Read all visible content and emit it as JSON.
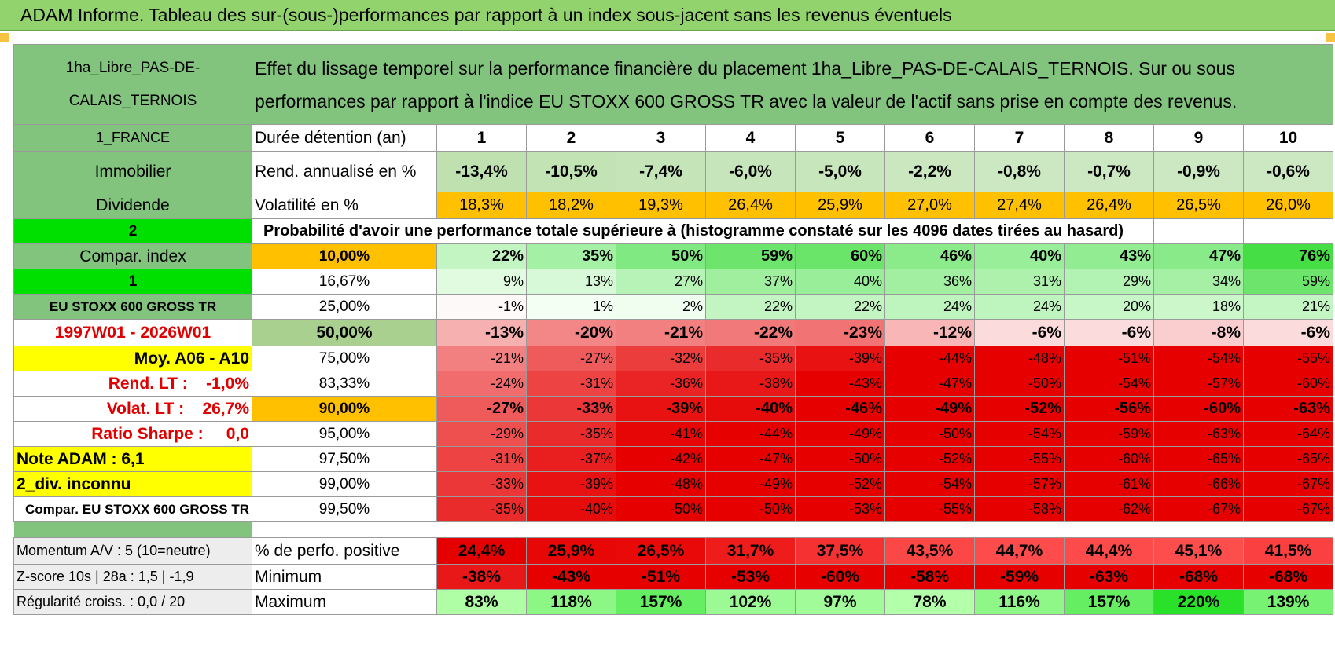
{
  "title": "ADAM Informe. Tableau des sur-(sous-)performances par rapport à un index sous-jacent sans les revenus éventuels",
  "asset_name": "1ha_Libre_PAS-DE-CALAIS_TERNOIS",
  "description": "Effet du lissage temporel sur la performance financière du placement 1ha_Libre_PAS-DE-CALAIS_TERNOIS. Sur ou sous performances par rapport à l'indice EU STOXX 600 GROSS TR avec la valeur de l'actif sans prise en compte des revenus.",
  "side_labels": {
    "country": "1_FRANCE",
    "category": "Immobilier",
    "dividend": "Dividende",
    "num2": "2",
    "compar_index": "Compar. index",
    "num1": "1",
    "index_name": "EU STOXX 600 GROSS TR",
    "period": "1997W01 - 2026W01",
    "moy": "Moy. A06 - A10",
    "rend_lt": "Rend. LT :    -1,0%",
    "volat_lt": "Volat. LT :    26,7%",
    "ratio_sharpe": "Ratio Sharpe :     0,0",
    "note_adam": "Note ADAM : 6,1",
    "div_inconnu": "2_div. inconnu",
    "compar_eu": "Compar. EU STOXX 600 GROSS TR",
    "momentum": "Momentum A/V : 5 (10=neutre)",
    "zscore": "Z-score 10s | 28a : 1,5 | -1,9",
    "regularite": "Régularité croiss. : 0,0 / 20"
  },
  "duration_label": "Durée détention (an)",
  "years": [
    "1",
    "2",
    "3",
    "4",
    "5",
    "6",
    "7",
    "8",
    "9",
    "10"
  ],
  "rend_label": "Rend. annualisé en %",
  "rend": [
    "-13,4%",
    "-10,5%",
    "-7,4%",
    "-6,0%",
    "-5,0%",
    "-2,2%",
    "-0,8%",
    "-0,7%",
    "-0,9%",
    "-0,6%"
  ],
  "vol_label": "Volatilité en %",
  "vol": [
    "18,3%",
    "18,2%",
    "19,3%",
    "26,4%",
    "25,9%",
    "27,0%",
    "27,4%",
    "26,4%",
    "26,5%",
    "26,0%"
  ],
  "prob_label": "Probabilité d'avoir une performance totale supérieure à (histogramme constaté sur les 4096 dates tirées au hasard)",
  "quantile_rows": [
    {
      "q": "10,00%",
      "v": [
        "22%",
        "35%",
        "50%",
        "59%",
        "60%",
        "46%",
        "40%",
        "43%",
        "47%",
        "76%"
      ]
    },
    {
      "q": "16,67%",
      "v": [
        "9%",
        "13%",
        "27%",
        "37%",
        "40%",
        "36%",
        "31%",
        "29%",
        "34%",
        "59%"
      ]
    },
    {
      "q": "25,00%",
      "v": [
        "-1%",
        "1%",
        "2%",
        "22%",
        "22%",
        "24%",
        "24%",
        "20%",
        "18%",
        "21%"
      ]
    },
    {
      "q": "50,00%",
      "v": [
        "-13%",
        "-20%",
        "-21%",
        "-22%",
        "-23%",
        "-12%",
        "-6%",
        "-6%",
        "-8%",
        "-6%"
      ]
    },
    {
      "q": "75,00%",
      "v": [
        "-21%",
        "-27%",
        "-32%",
        "-35%",
        "-39%",
        "-44%",
        "-48%",
        "-51%",
        "-54%",
        "-55%"
      ]
    },
    {
      "q": "83,33%",
      "v": [
        "-24%",
        "-31%",
        "-36%",
        "-38%",
        "-43%",
        "-47%",
        "-50%",
        "-54%",
        "-57%",
        "-60%"
      ]
    },
    {
      "q": "90,00%",
      "v": [
        "-27%",
        "-33%",
        "-39%",
        "-40%",
        "-46%",
        "-49%",
        "-52%",
        "-56%",
        "-60%",
        "-63%"
      ]
    },
    {
      "q": "95,00%",
      "v": [
        "-29%",
        "-35%",
        "-41%",
        "-44%",
        "-49%",
        "-50%",
        "-54%",
        "-59%",
        "-63%",
        "-64%"
      ]
    },
    {
      "q": "97,50%",
      "v": [
        "-31%",
        "-37%",
        "-42%",
        "-47%",
        "-50%",
        "-52%",
        "-55%",
        "-60%",
        "-65%",
        "-65%"
      ]
    },
    {
      "q": "99,00%",
      "v": [
        "-33%",
        "-39%",
        "-48%",
        "-49%",
        "-52%",
        "-54%",
        "-57%",
        "-61%",
        "-66%",
        "-67%"
      ]
    },
    {
      "q": "99,50%",
      "v": [
        "-35%",
        "-40%",
        "-50%",
        "-50%",
        "-53%",
        "-55%",
        "-58%",
        "-62%",
        "-67%",
        "-67%"
      ]
    }
  ],
  "pos_label": "% de perfo. positive",
  "pos": [
    "24,4%",
    "25,9%",
    "26,5%",
    "31,7%",
    "37,5%",
    "43,5%",
    "44,7%",
    "44,4%",
    "45,1%",
    "41,5%"
  ],
  "min_label": "Minimum",
  "min": [
    "-38%",
    "-43%",
    "-51%",
    "-53%",
    "-60%",
    "-58%",
    "-59%",
    "-63%",
    "-68%",
    "-68%"
  ],
  "max_label": "Maximum",
  "max": [
    "83%",
    "118%",
    "157%",
    "102%",
    "97%",
    "78%",
    "116%",
    "157%",
    "220%",
    "139%"
  ]
}
